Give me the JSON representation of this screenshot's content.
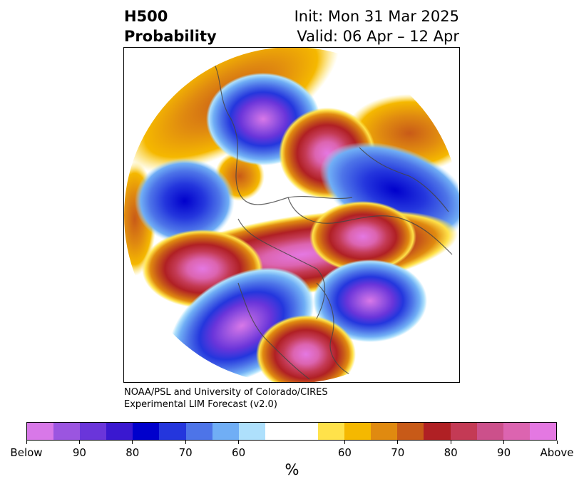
{
  "title": {
    "left_line1": "H500",
    "left_line2": "Probability",
    "right_line1": "Init: Mon 31 Mar 2025",
    "right_line2": "Valid: 06 Apr – 12 Apr"
  },
  "credit": {
    "line1": "NOAA/PSL and University of Colorado/CIRES",
    "line2": "Experimental LIM Forecast (v2.0)"
  },
  "colorbar": {
    "colors": [
      "#d878e8",
      "#9b55e0",
      "#6a35da",
      "#3a18d0",
      "#0000cc",
      "#2436dd",
      "#4d74e8",
      "#70aef5",
      "#aee0fc",
      "#ffffff",
      "#ffffff",
      "#ffe24a",
      "#f5b800",
      "#e08a10",
      "#c85a18",
      "#b02024",
      "#c43a55",
      "#cc508b",
      "#dc64b0",
      "#e478e2"
    ],
    "tick_labels": [
      "Below",
      "90",
      "80",
      "70",
      "60",
      "60",
      "70",
      "80",
      "90",
      "Above"
    ],
    "unit_label": "%"
  },
  "map": {
    "region": "Northern Hemisphere",
    "below_color": "#2436dd",
    "above_color": "#c43a55"
  }
}
